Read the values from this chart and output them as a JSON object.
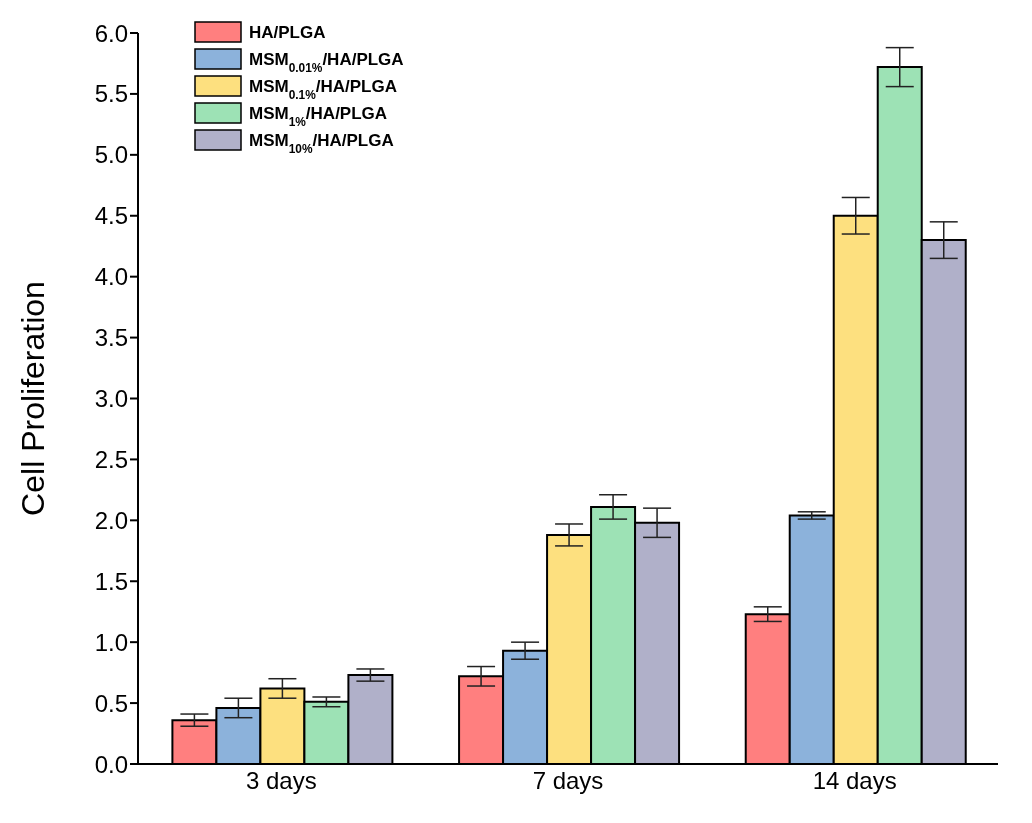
{
  "chart_data": {
    "type": "bar",
    "ylabel": "Cell Proliferation",
    "categories": [
      "3 days",
      "7 days",
      "14 days"
    ],
    "series": [
      {
        "name": "HA/PLGA",
        "color": "#ff7f7f",
        "values": [
          0.36,
          0.72,
          1.23
        ],
        "errors": [
          0.05,
          0.08,
          0.06
        ]
      },
      {
        "name": "MSM$_{0.01%}$/HA/PLGA",
        "color": "#8cb2db",
        "values": [
          0.46,
          0.93,
          2.04
        ],
        "errors": [
          0.08,
          0.07,
          0.03
        ]
      },
      {
        "name": "MSM$_{0.1%}$/HA/PLGA",
        "color": "#fde07f",
        "values": [
          0.62,
          1.88,
          4.5
        ],
        "errors": [
          0.08,
          0.09,
          0.15
        ]
      },
      {
        "name": "MSM$_{1%}$/HA/PLGA",
        "color": "#9de2b5",
        "values": [
          0.51,
          2.11,
          5.72
        ],
        "errors": [
          0.04,
          0.1,
          0.16
        ]
      },
      {
        "name": "MSM$_{10%}$/HA/PLGA",
        "color": "#b0b0c9",
        "values": [
          0.73,
          1.98,
          4.3
        ],
        "errors": [
          0.05,
          0.12,
          0.15
        ]
      }
    ],
    "ylim": [
      0,
      6
    ],
    "yticks": [
      {
        "value": 0,
        "label": "0.0"
      },
      {
        "value": 0.5,
        "label": "0.5"
      },
      {
        "value": 1,
        "label": "1.0"
      },
      {
        "value": 1.5,
        "label": "1.5"
      },
      {
        "value": 2,
        "label": "2.0"
      },
      {
        "value": 2.5,
        "label": "2.5"
      },
      {
        "value": 3,
        "label": "3.0"
      },
      {
        "value": 3.5,
        "label": "3.5"
      },
      {
        "value": 4,
        "label": "4.0"
      },
      {
        "value": 4.5,
        "label": "4.5"
      },
      {
        "value": 5,
        "label": "5.0"
      },
      {
        "value": 5.5,
        "label": "5.5"
      },
      {
        "value": 6,
        "label": "6.0"
      }
    ],
    "grid": false,
    "legend": "top left"
  }
}
